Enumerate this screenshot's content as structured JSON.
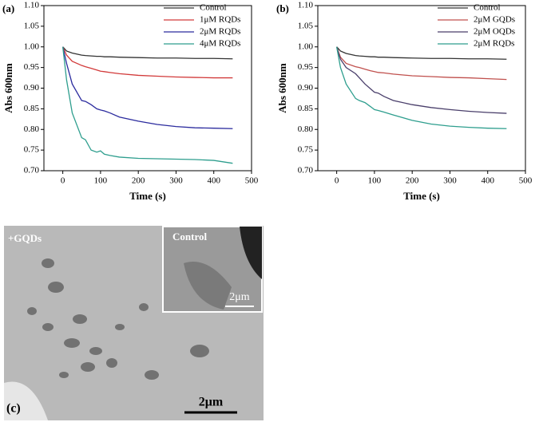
{
  "chart_data": [
    {
      "type": "line",
      "label": "(a)",
      "xlabel": "Time (s)",
      "ylabel": "Abs 600nm",
      "xlim": [
        -50,
        500
      ],
      "xticks": [
        0,
        100,
        200,
        300,
        400,
        500
      ],
      "ylim": [
        0.7,
        1.1
      ],
      "yticks": [
        {
          "value": 0.7,
          "label": "0.70"
        },
        0.75,
        {
          "value": 0.8,
          "label": "0.80"
        },
        0.85,
        {
          "value": 0.9,
          "label": "0.90"
        },
        0.95,
        {
          "value": 1.0,
          "label": "1.00"
        },
        1.05,
        {
          "value": 1.1,
          "label": "1.10"
        }
      ],
      "x": [
        0,
        10,
        25,
        50,
        60,
        75,
        90,
        100,
        110,
        125,
        150,
        200,
        250,
        300,
        350,
        400,
        450
      ],
      "series": [
        {
          "name": "Control",
          "color": "#333333",
          "values": [
            1.0,
            0.99,
            0.985,
            0.98,
            0.979,
            0.978,
            0.977,
            0.977,
            0.976,
            0.976,
            0.975,
            0.974,
            0.973,
            0.973,
            0.972,
            0.972,
            0.971
          ]
        },
        {
          "name": "1μM RQDs",
          "color": "#d23a3a",
          "values": [
            1.0,
            0.98,
            0.965,
            0.955,
            0.952,
            0.948,
            0.944,
            0.941,
            0.94,
            0.938,
            0.935,
            0.931,
            0.929,
            0.927,
            0.926,
            0.925,
            0.925
          ]
        },
        {
          "name": "2μM RQDs",
          "color": "#2b2b9e",
          "values": [
            1.0,
            0.96,
            0.91,
            0.87,
            0.868,
            0.86,
            0.85,
            0.847,
            0.845,
            0.84,
            0.83,
            0.82,
            0.812,
            0.807,
            0.804,
            0.803,
            0.802
          ]
        },
        {
          "name": "4μM RQDs",
          "color": "#2e9e8e",
          "values": [
            1.0,
            0.92,
            0.84,
            0.78,
            0.775,
            0.75,
            0.745,
            0.748,
            0.74,
            0.737,
            0.733,
            0.73,
            0.729,
            0.728,
            0.727,
            0.725,
            0.718
          ]
        }
      ]
    },
    {
      "type": "line",
      "label": "(b)",
      "xlabel": "Time (s)",
      "ylabel": "Abs 600nm",
      "xlim": [
        -50,
        500
      ],
      "xticks": [
        0,
        100,
        200,
        300,
        400,
        500
      ],
      "ylim": [
        0.7,
        1.1
      ],
      "yticks": [
        {
          "value": 0.7,
          "label": "0.70"
        },
        0.75,
        {
          "value": 0.8,
          "label": "0.80"
        },
        0.85,
        {
          "value": 0.9,
          "label": "0.90"
        },
        0.95,
        {
          "value": 1.0,
          "label": "1.00"
        },
        1.05,
        {
          "value": 1.1,
          "label": "1.10"
        }
      ],
      "x": [
        0,
        10,
        25,
        50,
        60,
        75,
        90,
        100,
        110,
        125,
        150,
        200,
        250,
        300,
        350,
        400,
        450
      ],
      "series": [
        {
          "name": "Control",
          "color": "#333333",
          "values": [
            1.0,
            0.99,
            0.984,
            0.979,
            0.978,
            0.977,
            0.976,
            0.976,
            0.975,
            0.975,
            0.974,
            0.973,
            0.972,
            0.972,
            0.971,
            0.971,
            0.97
          ]
        },
        {
          "name": "2μM GQDs",
          "color": "#c0504d",
          "values": [
            1.0,
            0.975,
            0.96,
            0.952,
            0.95,
            0.946,
            0.942,
            0.94,
            0.938,
            0.937,
            0.934,
            0.93,
            0.928,
            0.926,
            0.925,
            0.923,
            0.921
          ]
        },
        {
          "name": "2μM OQDs",
          "color": "#4a3f6b",
          "values": [
            1.0,
            0.97,
            0.95,
            0.935,
            0.925,
            0.91,
            0.898,
            0.89,
            0.888,
            0.88,
            0.87,
            0.86,
            0.853,
            0.848,
            0.844,
            0.841,
            0.839
          ]
        },
        {
          "name": "2μM RQDs",
          "color": "#2e9e8e",
          "values": [
            1.0,
            0.95,
            0.91,
            0.875,
            0.87,
            0.865,
            0.855,
            0.848,
            0.846,
            0.842,
            0.835,
            0.822,
            0.813,
            0.808,
            0.805,
            0.803,
            0.802
          ]
        }
      ]
    }
  ],
  "micrograph": {
    "label": "(c)",
    "main_label": "+GQDs",
    "inset_label": "Control",
    "inset_scale": "2μm",
    "main_scale": "2μm"
  }
}
